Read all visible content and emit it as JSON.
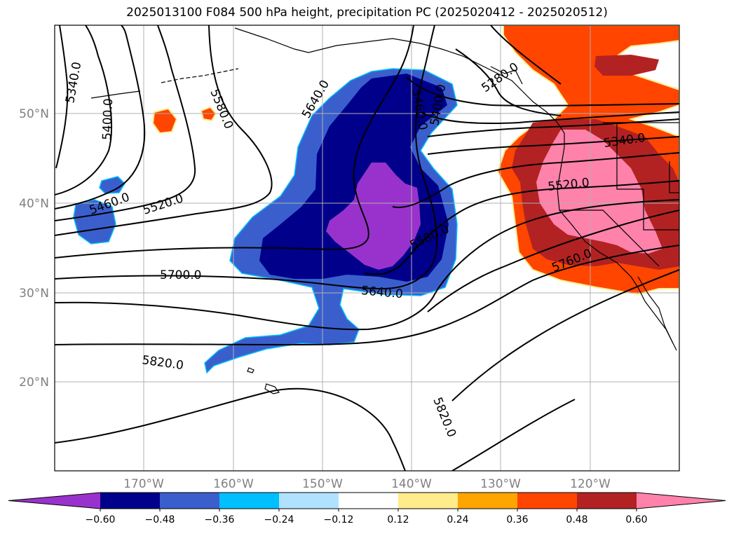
{
  "title": "2025013100 F084 500 hPa height, precipitation PC (2025020412 - 2025020512)",
  "lat_labels": [
    "50°N",
    "40°N",
    "30°N",
    "20°N"
  ],
  "lon_labels": [
    "170°W",
    "160°W",
    "150°W",
    "140°W",
    "130°W",
    "120°W"
  ],
  "contour_labels": [
    "5340.0",
    "5400.0",
    "5460.0",
    "5520.0",
    "5580.0",
    "5640.0",
    "5460.0",
    "5400.0",
    "5340.0",
    "5520.0",
    "5580.0",
    "5700.0",
    "5640.0",
    "5760.0",
    "5820.0",
    "5820.0",
    "5280.0"
  ],
  "colorbar": {
    "ticks": [
      "−0.60",
      "−0.48",
      "−0.36",
      "−0.24",
      "−0.12",
      "0.12",
      "0.24",
      "0.36",
      "0.48",
      "0.60"
    ],
    "colors": [
      "#9932CC",
      "#00008B",
      "#3A5FCD",
      "#00BFFF",
      "#B0E2FF",
      "#FFFFFF",
      "#FFEC8B",
      "#FFA500",
      "#FF4500",
      "#B22222",
      "#FF82AB"
    ]
  }
}
